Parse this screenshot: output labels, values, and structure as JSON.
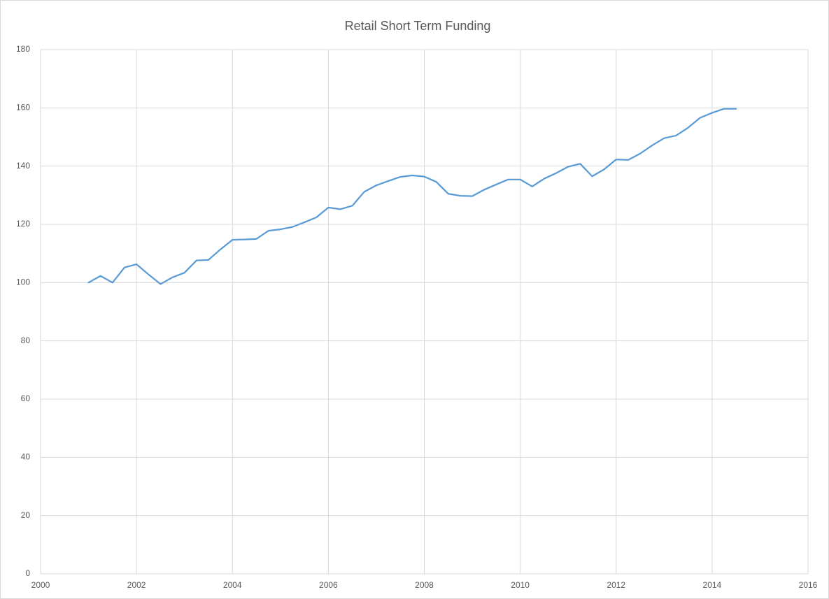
{
  "chart_data": {
    "type": "line",
    "title": "Retail Short Term Funding",
    "x": [
      2001,
      2001.25,
      2001.5,
      2001.75,
      2002,
      2002.25,
      2002.5,
      2002.75,
      2003,
      2003.25,
      2003.5,
      2003.75,
      2004,
      2004.25,
      2004.5,
      2004.75,
      2005,
      2005.25,
      2005.5,
      2005.75,
      2006,
      2006.25,
      2006.5,
      2006.75,
      2007,
      2007.25,
      2007.5,
      2007.75,
      2008,
      2008.25,
      2008.5,
      2008.75,
      2009,
      2009.25,
      2009.5,
      2009.75,
      2010,
      2010.25,
      2010.5,
      2010.75,
      2011,
      2011.25,
      2011.5,
      2011.75,
      2012,
      2012.25,
      2012.5,
      2012.75,
      2013,
      2013.25,
      2013.5,
      2013.75,
      2014,
      2014.25,
      2014.5
    ],
    "values": [
      100,
      102.3,
      100,
      105.2,
      106.3,
      102.8,
      99.5,
      101.8,
      103.4,
      107.6,
      107.8,
      111.4,
      114.7,
      114.8,
      115,
      117.8,
      118.3,
      119.1,
      120.7,
      122.4,
      125.8,
      125.2,
      126.4,
      131.2,
      133.4,
      134.9,
      136.3,
      136.8,
      136.4,
      134.6,
      130.5,
      129.8,
      129.7,
      131.9,
      133.7,
      135.4,
      135.4,
      133,
      135.7,
      137.6,
      139.8,
      140.8,
      136.5,
      138.9,
      142.3,
      142.1,
      144.3,
      147.1,
      149.6,
      150.5,
      153.2,
      156.6,
      158.3,
      159.7,
      159.7
    ],
    "color": "#5b9bd5",
    "xlim": [
      2000,
      2016
    ],
    "xticks": [
      2000,
      2002,
      2004,
      2006,
      2008,
      2010,
      2012,
      2014,
      2016
    ],
    "ylim": [
      0,
      180
    ],
    "yticks": [
      0,
      20,
      40,
      60,
      80,
      100,
      120,
      140,
      160,
      180
    ],
    "grid": true
  }
}
